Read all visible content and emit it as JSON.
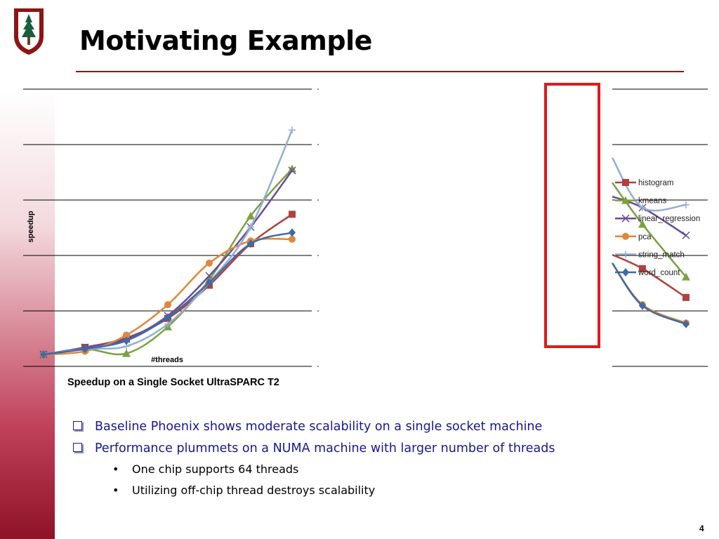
{
  "slide": {
    "title": "Motivating Example",
    "page_number": "4",
    "brand_color": "#8c1515"
  },
  "chart": {
    "ylabel": "speedup",
    "xlabel": "#threads",
    "caption": "Speedup on a Single Socket UltraSPARC T2"
  },
  "bullets": [
    "Baseline Phoenix shows moderate scalability on a single socket machine",
    "Performance plummets on a NUMA machine with larger number of threads"
  ],
  "sub_bullets": [
    "One chip supports 64 threads",
    "Utilizing off-chip thread destroys scalability"
  ],
  "chart_data": {
    "type": "line",
    "title": "Speedup on a Single Socket UltraSPARC T2",
    "xlabel": "#threads",
    "ylabel": "speedup",
    "x": [
      1,
      2,
      3,
      4,
      5,
      6,
      7
    ],
    "grid": true,
    "legend_position": "right",
    "series": [
      {
        "name": "histogram",
        "color": "#b0413e",
        "marker": "square",
        "values": [
          0.2,
          0.33,
          0.5,
          0.85,
          1.45,
          2.2,
          2.73
        ]
      },
      {
        "name": "kmeans",
        "color": "#7ba23f",
        "marker": "triangle",
        "values": [
          0.2,
          0.3,
          0.22,
          0.7,
          1.55,
          2.7,
          3.55
        ]
      },
      {
        "name": "linear_regression",
        "color": "#6a4c93",
        "marker": "x",
        "values": [
          0.2,
          0.33,
          0.48,
          0.9,
          1.62,
          2.5,
          3.52
        ]
      },
      {
        "name": "pca",
        "color": "#e0873a",
        "marker": "circle",
        "values": [
          0.2,
          0.26,
          0.55,
          1.1,
          1.85,
          2.25,
          2.28
        ]
      },
      {
        "name": "string_match",
        "color": "#95aed3",
        "marker": "plus",
        "values": [
          0.2,
          0.3,
          0.35,
          0.75,
          1.5,
          2.5,
          4.25
        ]
      },
      {
        "name": "word_count",
        "color": "#3e6aa6",
        "marker": "diamond",
        "values": [
          0.2,
          0.3,
          0.45,
          0.87,
          1.5,
          2.2,
          2.4
        ]
      }
    ],
    "partial_right_segments": {
      "histogram": [
        2.0,
        1.75,
        1.23
      ],
      "kmeans": [
        3.3,
        2.55,
        1.6
      ],
      "linear_regression": [
        3.05,
        2.85,
        2.35
      ],
      "pca": [
        1.85,
        1.1,
        0.77
      ],
      "string_match": [
        3.75,
        2.85,
        2.9
      ],
      "word_count": [
        1.85,
        1.08,
        0.75
      ]
    },
    "highlight_color": "#e0191c"
  }
}
